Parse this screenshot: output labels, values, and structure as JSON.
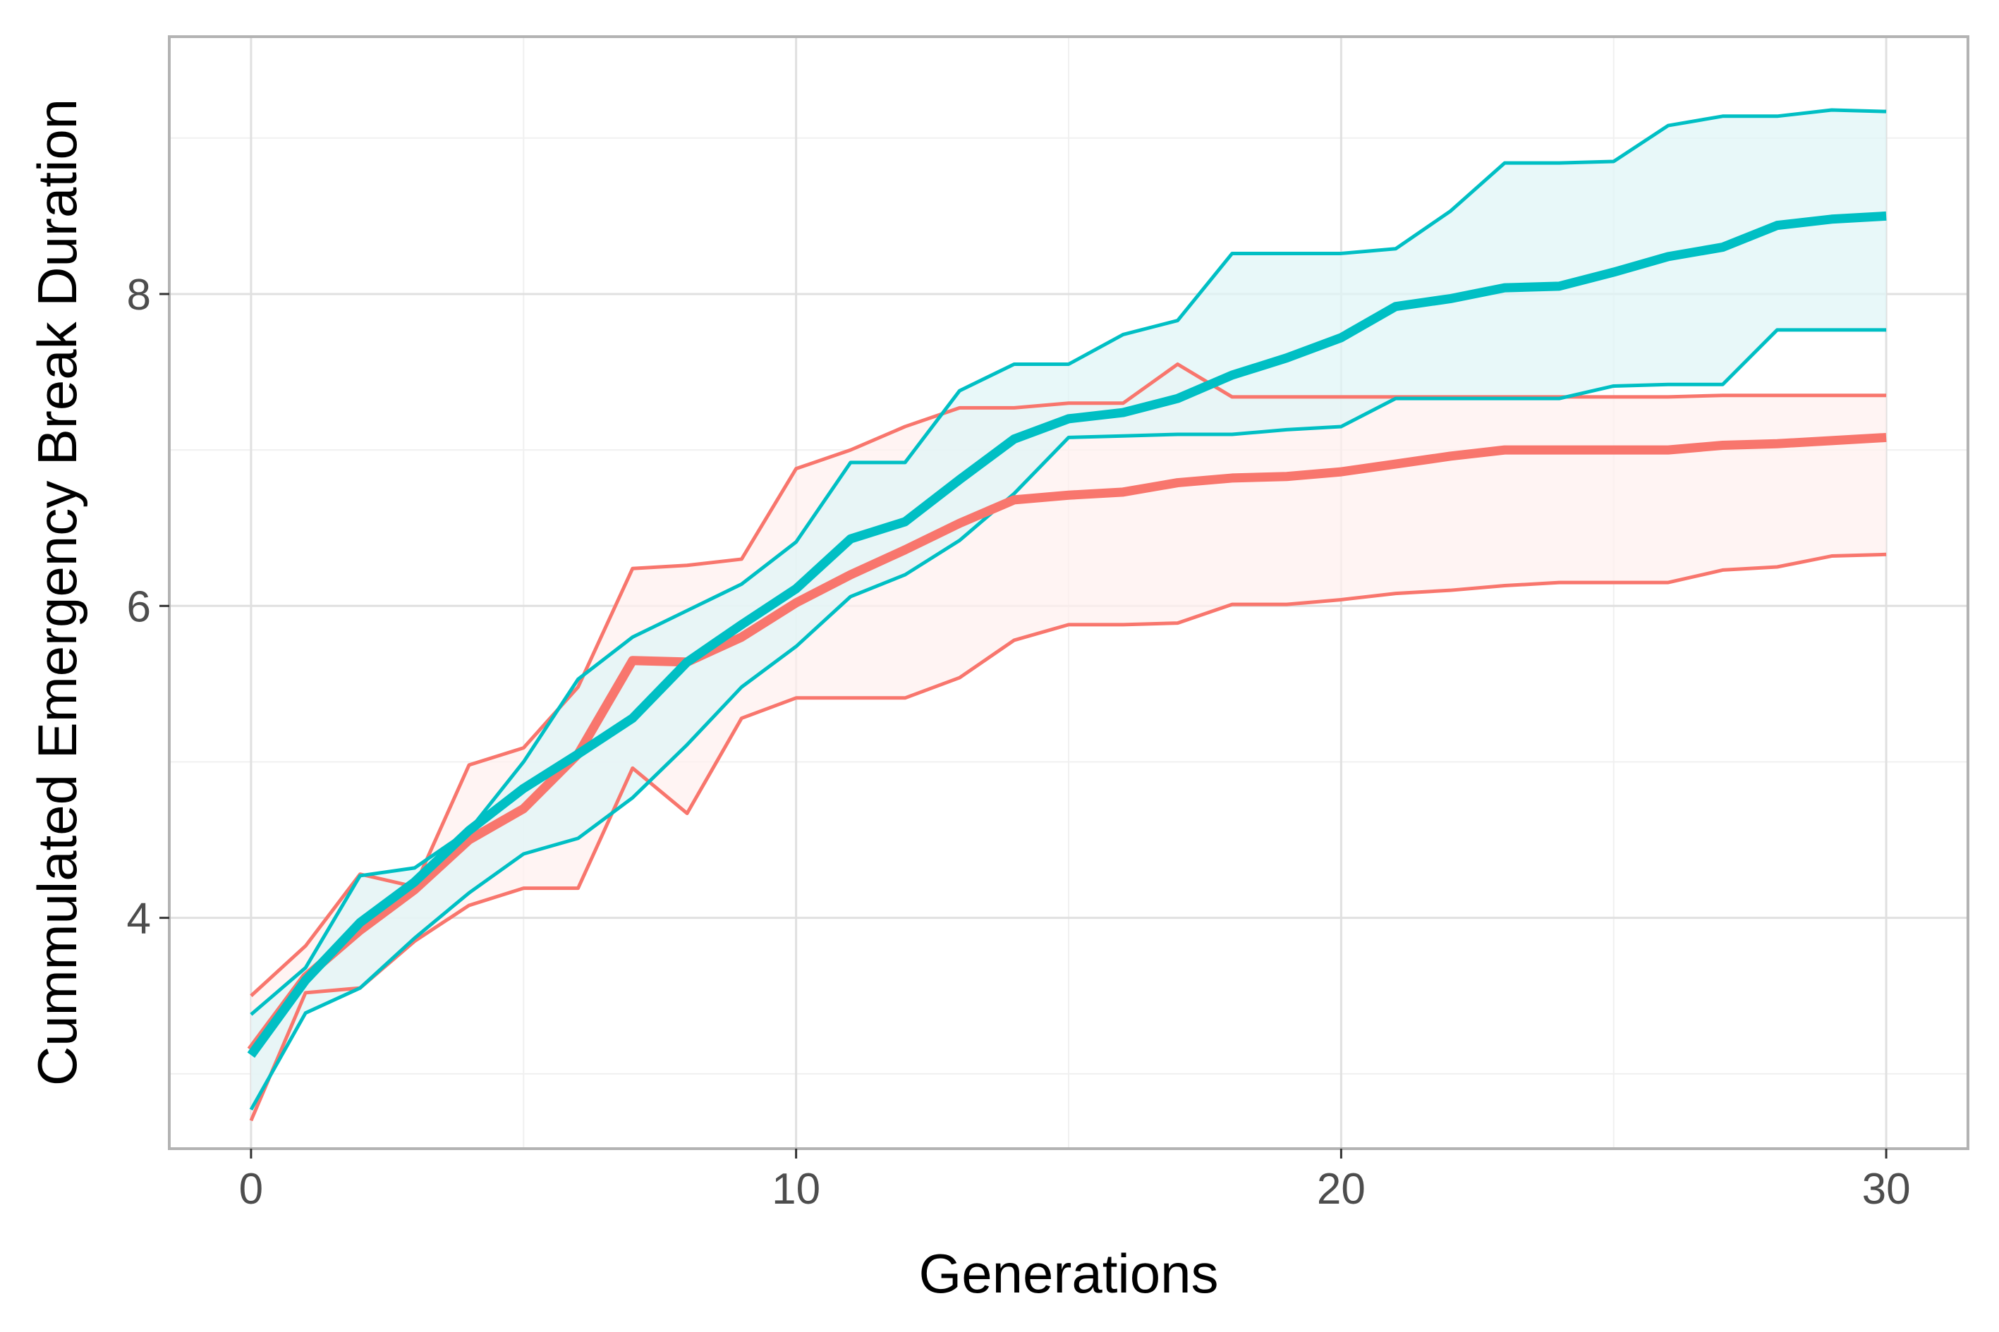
{
  "chart_data": {
    "type": "line",
    "title": "",
    "xlabel": "Generations",
    "ylabel": "Cummulated Emergency Break Duration",
    "xlim": [
      -1.5,
      31.5
    ],
    "ylim": [
      2.52,
      9.65
    ],
    "x_ticks": [
      0,
      10,
      20,
      30
    ],
    "x_tick_labels": [
      "0",
      "10",
      "20",
      "30"
    ],
    "x_minor_ticks": [
      5,
      15,
      25
    ],
    "y_ticks": [
      4,
      6,
      8
    ],
    "y_tick_labels": [
      "4",
      "6",
      "8"
    ],
    "y_minor_ticks": [
      3,
      5,
      7,
      9
    ],
    "grid": true,
    "legend": "none",
    "x": [
      0,
      1,
      2,
      3,
      4,
      5,
      6,
      7,
      8,
      9,
      10,
      11,
      12,
      13,
      14,
      15,
      16,
      17,
      18,
      19,
      20,
      21,
      22,
      23,
      24,
      25,
      26,
      27,
      28,
      29,
      30
    ],
    "series": [
      {
        "color": "#F8766D",
        "fill": "#FFF0EF",
        "mean": [
          3.15,
          3.62,
          3.92,
          4.18,
          4.5,
          4.7,
          5.05,
          5.65,
          5.64,
          5.8,
          6.02,
          6.2,
          6.36,
          6.53,
          6.68,
          6.71,
          6.73,
          6.79,
          6.82,
          6.83,
          6.86,
          6.91,
          6.96,
          7.0,
          7.0,
          7.0,
          7.0,
          7.03,
          7.04,
          7.06,
          7.08
        ],
        "upper": [
          3.5,
          3.82,
          4.28,
          4.2,
          4.98,
          5.09,
          5.48,
          6.24,
          6.26,
          6.3,
          6.88,
          7.0,
          7.15,
          7.27,
          7.27,
          7.3,
          7.3,
          7.55,
          7.34,
          7.34,
          7.34,
          7.34,
          7.34,
          7.34,
          7.34,
          7.34,
          7.34,
          7.35,
          7.35,
          7.35,
          7.35
        ],
        "lower": [
          2.7,
          3.52,
          3.55,
          3.85,
          4.08,
          4.19,
          4.19,
          4.96,
          4.67,
          5.28,
          5.41,
          5.41,
          5.41,
          5.54,
          5.78,
          5.88,
          5.88,
          5.89,
          6.01,
          6.01,
          6.04,
          6.08,
          6.1,
          6.13,
          6.15,
          6.15,
          6.15,
          6.23,
          6.25,
          6.32,
          6.33
        ]
      },
      {
        "color": "#00BFC4",
        "fill": "#E0F6F7",
        "mean": [
          3.12,
          3.6,
          3.97,
          4.23,
          4.56,
          4.83,
          5.05,
          5.28,
          5.64,
          5.88,
          6.11,
          6.43,
          6.54,
          6.81,
          7.07,
          7.2,
          7.24,
          7.33,
          7.48,
          7.59,
          7.72,
          7.92,
          7.97,
          8.04,
          8.05,
          8.14,
          8.24,
          8.3,
          8.44,
          8.48,
          8.5
        ],
        "upper": [
          3.38,
          3.68,
          4.27,
          4.32,
          4.56,
          5.0,
          5.53,
          5.8,
          5.97,
          6.14,
          6.41,
          6.92,
          6.92,
          7.38,
          7.55,
          7.55,
          7.74,
          7.83,
          8.26,
          8.26,
          8.26,
          8.29,
          8.53,
          8.84,
          8.84,
          8.85,
          9.08,
          9.14,
          9.14,
          9.18,
          9.17
        ],
        "lower": [
          2.77,
          3.39,
          3.55,
          3.87,
          4.16,
          4.41,
          4.51,
          4.77,
          5.11,
          5.48,
          5.74,
          6.06,
          6.2,
          6.42,
          6.72,
          7.08,
          7.09,
          7.1,
          7.1,
          7.13,
          7.15,
          7.33,
          7.33,
          7.33,
          7.33,
          7.41,
          7.42,
          7.42,
          7.77,
          7.77,
          7.77
        ]
      }
    ]
  }
}
